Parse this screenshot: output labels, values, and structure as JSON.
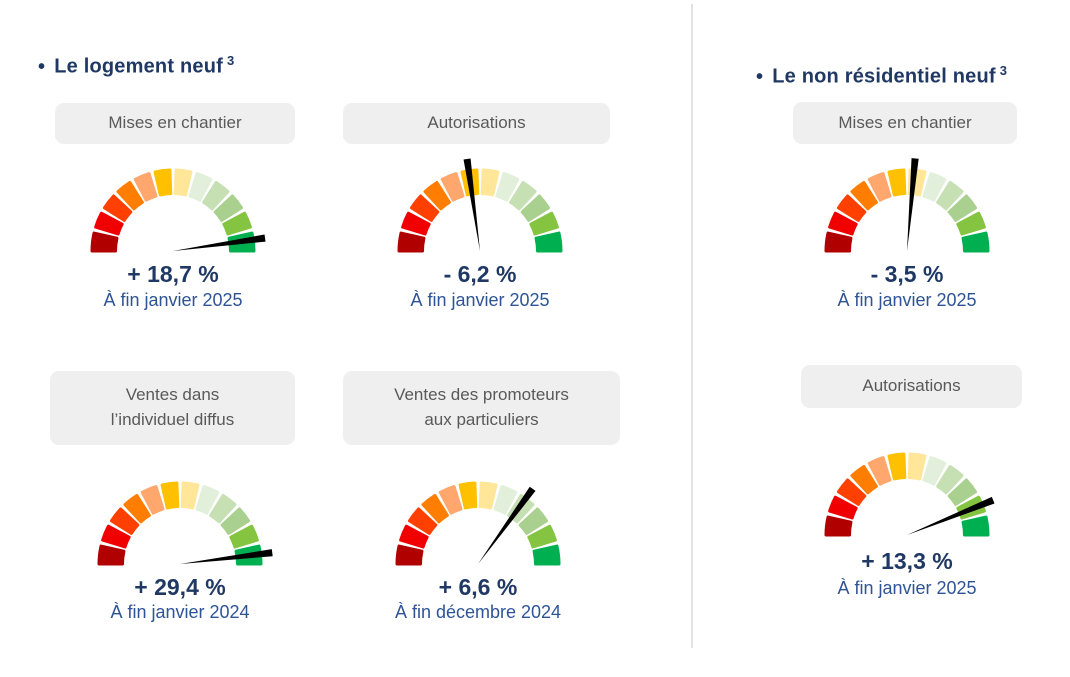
{
  "sections": [
    {
      "bullet": "•",
      "title": "Le logement neuf",
      "footnote": "3"
    },
    {
      "bullet": "•",
      "title": "Le non résidentiel neuf",
      "footnote": "3"
    }
  ],
  "colors": {
    "title": "#1F3864",
    "value": "#1F3864",
    "period": "#2E5496",
    "pill_bg": "#EFEFEF",
    "pill_text": "#595959",
    "divider": "#E2E2E2"
  },
  "chart_data": {
    "type": "gauge",
    "segment_count": 12,
    "segment_colors": [
      "#B00000",
      "#F00000",
      "#FF4000",
      "#FF7D00",
      "#FFA76C",
      "#FFC000",
      "#FFE699",
      "#E2EFDA",
      "#C6E0B4",
      "#A9D08E",
      "#84C441",
      "#00B050"
    ],
    "needle_color": "#000000",
    "scale": "red (bad) to green (good), semicircle",
    "gauges": [
      {
        "section": "Le logement neuf",
        "label": "Mises en chantier",
        "value": 18.7,
        "value_label": "+ 18,7 %",
        "period": "À fin janvier 2025",
        "needle_deg": 8
      },
      {
        "section": "Le logement neuf",
        "label": "Autorisations",
        "value": -6.2,
        "value_label": "- 6,2 %",
        "period": "À fin janvier 2025",
        "needle_deg": 98
      },
      {
        "section": "Le logement neuf",
        "label": "Ventes dans\nl’individuel diffus",
        "value": 29.4,
        "value_label": "+ 29,4 %",
        "period": "À fin janvier 2024",
        "needle_deg": 7
      },
      {
        "section": "Le logement neuf",
        "label": "Ventes des promoteurs\naux particuliers",
        "value": 6.6,
        "value_label": "+ 6,6 %",
        "period": "À fin décembre 2024",
        "needle_deg": 54
      },
      {
        "section": "Le non résidentiel neuf",
        "label": "Mises en chantier",
        "value": -3.5,
        "value_label": "- 3,5 %",
        "period": "À fin janvier 2025",
        "needle_deg": 85
      },
      {
        "section": "Le non résidentiel neuf",
        "label": "Autorisations",
        "value": 13.3,
        "value_label": "+ 13,3 %",
        "period": "À fin janvier 2025",
        "needle_deg": 22
      }
    ]
  }
}
